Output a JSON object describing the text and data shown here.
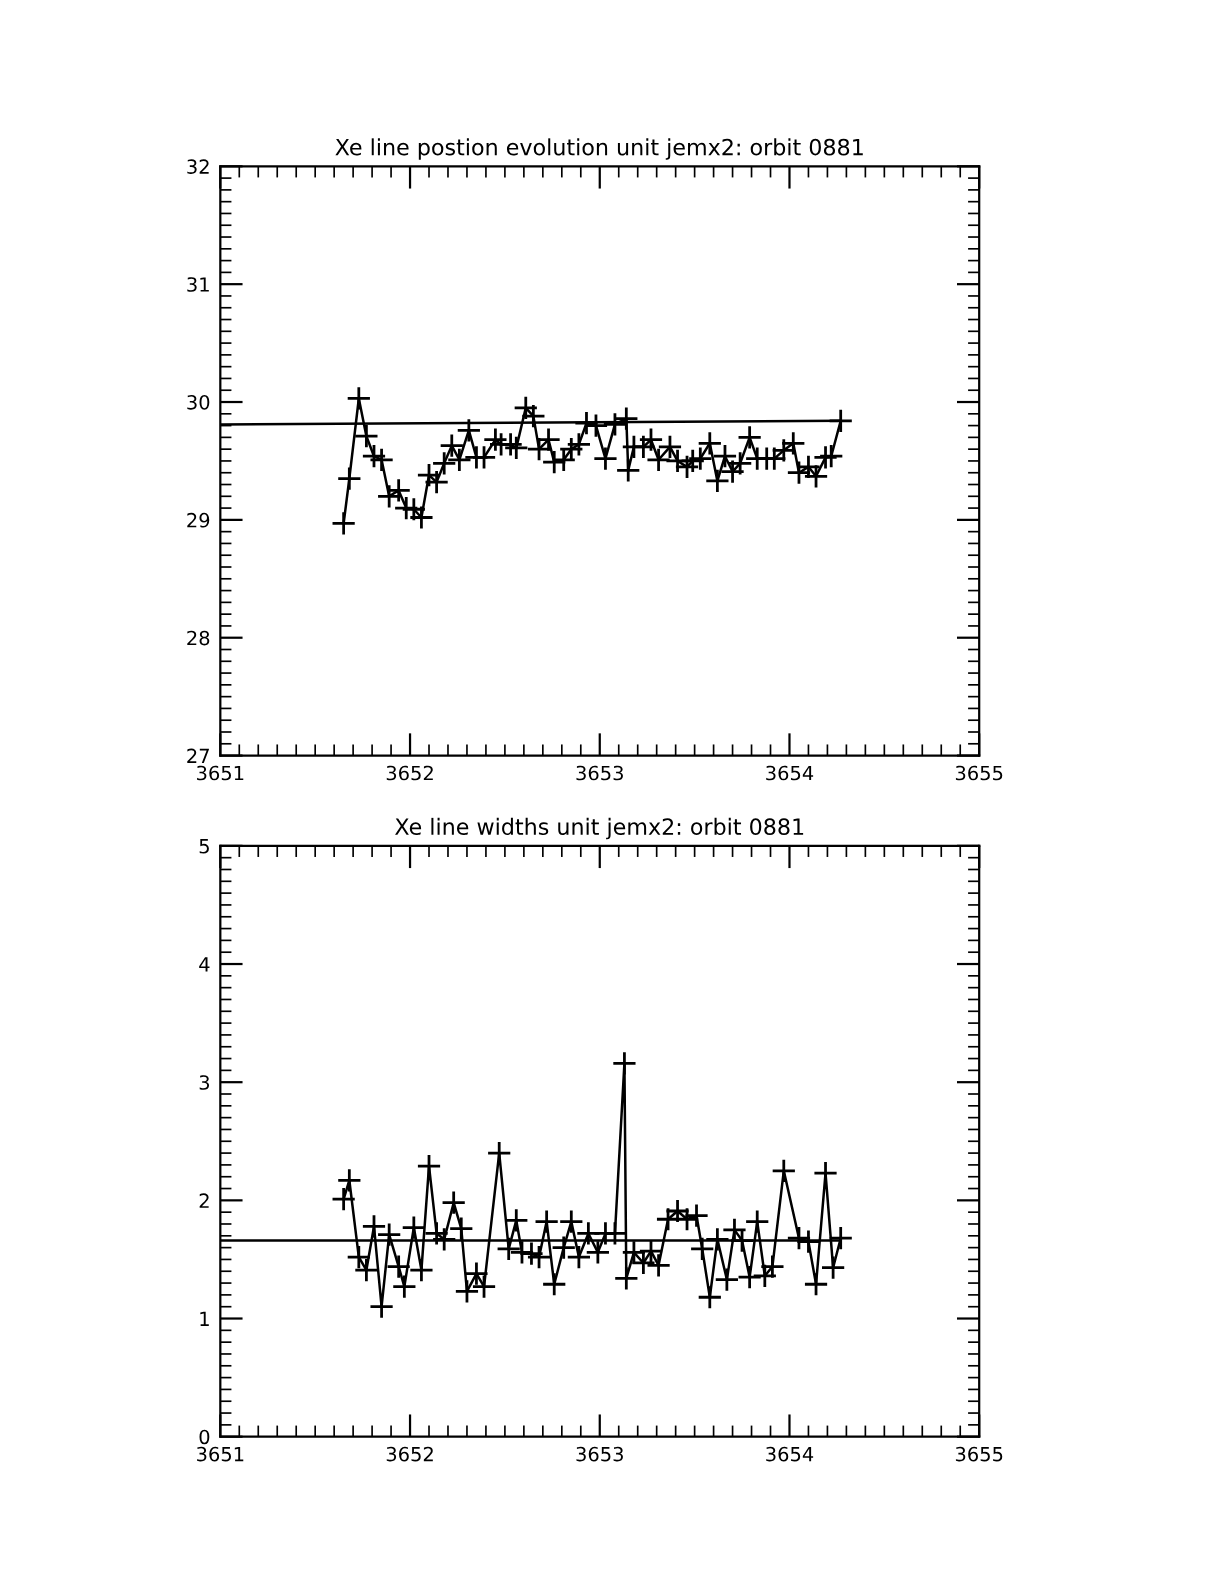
{
  "chart_data": [
    {
      "type": "line",
      "title": "Xe line postion evolution unit jemx2: orbit 0881",
      "xlim": [
        3651,
        3655
      ],
      "xticks": [
        3651,
        3652,
        3653,
        3654,
        3655
      ],
      "ylim": [
        27,
        32
      ],
      "yticks": [
        27,
        28,
        29,
        30,
        31,
        32
      ],
      "grid": false,
      "legend": false,
      "series": [
        {
          "color": "#000000",
          "marker": "cross",
          "line_style": "solid",
          "x": [
            3651.65,
            3651.68,
            3651.73,
            3651.77,
            3651.81,
            3651.85,
            3651.89,
            3651.94,
            3651.98,
            3652.02,
            3652.06,
            3652.1,
            3652.14,
            3652.18,
            3652.22,
            3652.26,
            3652.31,
            3652.35,
            3652.39,
            3652.45,
            3652.48,
            3652.53,
            3652.56,
            3652.61,
            3652.65,
            3652.68,
            3652.73,
            3652.76,
            3652.81,
            3652.85,
            3652.89,
            3652.93,
            3652.98,
            3653.03,
            3653.08,
            3653.14,
            3653.15,
            3653.18,
            3653.23,
            3653.27,
            3653.31,
            3653.37,
            3653.41,
            3653.46,
            3653.49,
            3653.53,
            3653.58,
            3653.62,
            3653.66,
            3653.7,
            3653.74,
            3653.79,
            3653.83,
            3653.88,
            3653.92,
            3653.97,
            3654.02,
            3654.05,
            3654.1,
            3654.14,
            3654.19,
            3654.22,
            3654.27
          ],
          "values": [
            28.97,
            29.35,
            30.03,
            29.71,
            29.54,
            29.51,
            29.2,
            29.25,
            29.1,
            29.09,
            29.02,
            29.38,
            29.32,
            29.48,
            29.63,
            29.51,
            29.76,
            29.53,
            29.53,
            29.68,
            29.64,
            29.64,
            29.61,
            29.95,
            29.88,
            29.6,
            29.68,
            29.49,
            29.51,
            29.6,
            29.64,
            29.82,
            29.8,
            29.52,
            29.81,
            29.86,
            29.42,
            29.62,
            29.62,
            29.68,
            29.51,
            29.62,
            29.5,
            29.45,
            29.5,
            29.52,
            29.65,
            29.33,
            29.54,
            29.41,
            29.48,
            29.7,
            29.52,
            29.52,
            29.52,
            29.59,
            29.65,
            29.4,
            29.45,
            29.37,
            29.53,
            29.54,
            29.84
          ]
        },
        {
          "color": "#000000",
          "marker": "none",
          "line_style": "solid",
          "x": [
            3651,
            3654.27
          ],
          "values": [
            29.81,
            29.84
          ]
        }
      ]
    },
    {
      "type": "line",
      "title": "Xe line widths unit jemx2: orbit 0881",
      "xlim": [
        3651,
        3655
      ],
      "xticks": [
        3651,
        3652,
        3653,
        3654,
        3655
      ],
      "ylim": [
        0,
        5
      ],
      "yticks": [
        0,
        1,
        2,
        3,
        4,
        5
      ],
      "grid": false,
      "legend": false,
      "series": [
        {
          "color": "#000000",
          "marker": "cross",
          "line_style": "solid",
          "x": [
            3651.65,
            3651.68,
            3651.73,
            3651.77,
            3651.81,
            3651.85,
            3651.89,
            3651.94,
            3651.97,
            3652.02,
            3652.06,
            3652.1,
            3652.14,
            3652.18,
            3652.23,
            3652.27,
            3652.3,
            3652.35,
            3652.39,
            3652.47,
            3652.52,
            3652.56,
            3652.59,
            3652.64,
            3652.68,
            3652.72,
            3652.76,
            3652.81,
            3652.85,
            3652.89,
            3652.94,
            3652.99,
            3653.03,
            3653.08,
            3653.13,
            3653.14,
            3653.18,
            3653.23,
            3653.27,
            3653.31,
            3653.36,
            3653.41,
            3653.46,
            3653.51,
            3653.54,
            3653.58,
            3653.62,
            3653.67,
            3653.71,
            3653.75,
            3653.79,
            3653.83,
            3653.87,
            3653.91,
            3653.97,
            3654.05,
            3654.1,
            3654.14,
            3654.19,
            3654.23,
            3654.27
          ],
          "values": [
            2.01,
            2.17,
            1.52,
            1.41,
            1.78,
            1.1,
            1.71,
            1.44,
            1.27,
            1.77,
            1.41,
            2.29,
            1.72,
            1.67,
            1.98,
            1.76,
            1.23,
            1.38,
            1.27,
            2.4,
            1.59,
            1.83,
            1.56,
            1.55,
            1.52,
            1.82,
            1.29,
            1.6,
            1.82,
            1.52,
            1.72,
            1.56,
            1.72,
            1.72,
            3.16,
            1.34,
            1.56,
            1.47,
            1.57,
            1.45,
            1.84,
            1.91,
            1.84,
            1.87,
            1.59,
            1.18,
            1.67,
            1.33,
            1.75,
            1.66,
            1.35,
            1.82,
            1.36,
            1.44,
            2.25,
            1.68,
            1.65,
            1.29,
            2.23,
            1.43,
            1.68
          ]
        },
        {
          "color": "#000000",
          "marker": "none",
          "line_style": "solid",
          "x": [
            3651,
            3654.27
          ],
          "values": [
            1.66,
            1.66
          ]
        }
      ]
    }
  ]
}
